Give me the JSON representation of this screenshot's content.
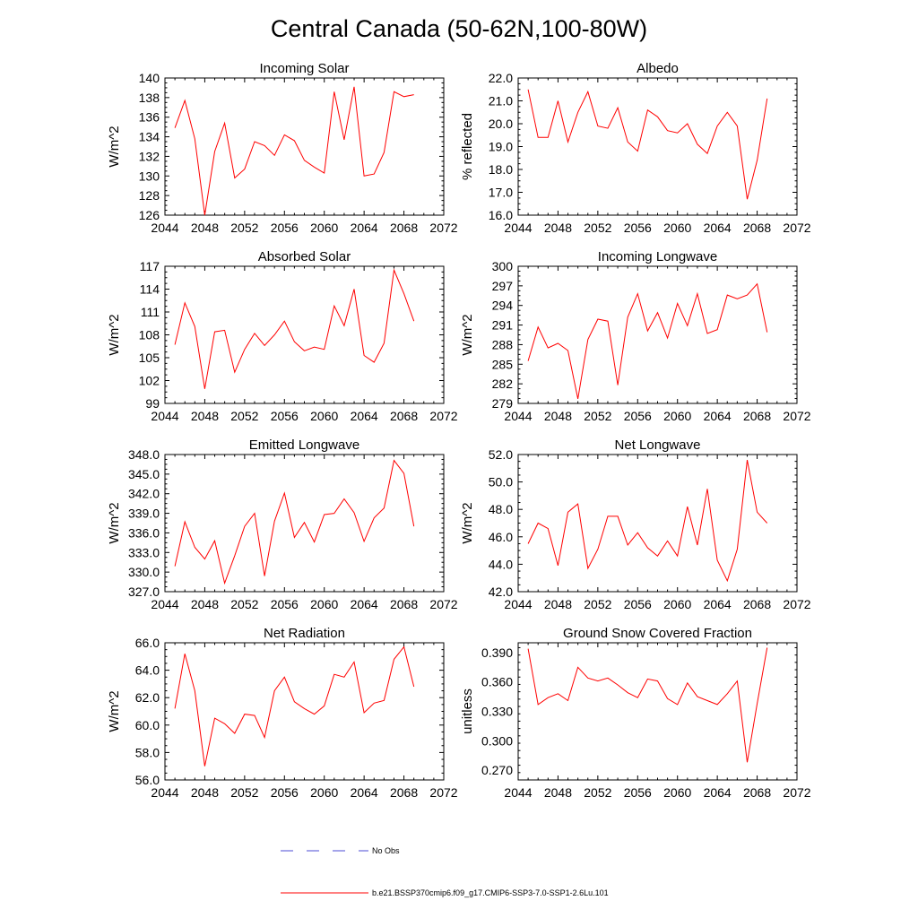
{
  "figure": {
    "title": "Central Canada (50-62N,100-80W)",
    "series_color": "#ff0000",
    "obs_color": "#4b4bd6"
  },
  "legend": {
    "items": [
      {
        "label": "No Obs",
        "style": "dashed",
        "color": "#4b4bd6"
      },
      {
        "label": "b.e21.BSSP370cmip6.f09_g17.CMIP6-SSP3-7.0-SSP1-2.6Lu.101",
        "style": "solid",
        "color": "#ff0000"
      }
    ]
  },
  "chart_data": [
    {
      "type": "line",
      "title": "Incoming Solar",
      "xlabel": "",
      "ylabel": "W/m^2",
      "xlim": [
        2044,
        2072
      ],
      "ylim": [
        126,
        140
      ],
      "xticks": [
        2044,
        2048,
        2052,
        2056,
        2060,
        2064,
        2068,
        2072
      ],
      "yticks": [
        "126",
        "128",
        "130",
        "132",
        "134",
        "136",
        "138",
        "140"
      ],
      "x": [
        2045,
        2046,
        2047,
        2048,
        2049,
        2050,
        2051,
        2052,
        2053,
        2054,
        2055,
        2056,
        2057,
        2058,
        2059,
        2060,
        2061,
        2062,
        2063,
        2064,
        2065,
        2066,
        2067,
        2068,
        2069
      ],
      "values": [
        134.9,
        137.7,
        133.8,
        126.0,
        132.5,
        135.4,
        129.8,
        130.7,
        133.5,
        133.1,
        132.1,
        134.2,
        133.6,
        131.6,
        130.9,
        130.3,
        138.6,
        133.7,
        139.1,
        130.0,
        130.2,
        132.4,
        138.6,
        138.1,
        138.3
      ]
    },
    {
      "type": "line",
      "title": "Albedo",
      "xlabel": "",
      "ylabel": "% reflected",
      "xlim": [
        2044,
        2072
      ],
      "ylim": [
        16.0,
        22.0
      ],
      "xticks": [
        2044,
        2048,
        2052,
        2056,
        2060,
        2064,
        2068,
        2072
      ],
      "yticks": [
        "16.0",
        "17.0",
        "18.0",
        "19.0",
        "20.0",
        "21.0",
        "22.0"
      ],
      "x": [
        2045,
        2046,
        2047,
        2048,
        2049,
        2050,
        2051,
        2052,
        2053,
        2054,
        2055,
        2056,
        2057,
        2058,
        2059,
        2060,
        2061,
        2062,
        2063,
        2064,
        2065,
        2066,
        2067,
        2068,
        2069
      ],
      "values": [
        21.5,
        19.4,
        19.4,
        21.0,
        19.2,
        20.5,
        21.4,
        19.9,
        19.8,
        20.7,
        19.2,
        18.8,
        20.6,
        20.3,
        19.7,
        19.6,
        20.0,
        19.1,
        18.7,
        19.9,
        20.5,
        19.9,
        16.7,
        18.4,
        21.1
      ]
    },
    {
      "type": "line",
      "title": "Absorbed Solar",
      "xlabel": "",
      "ylabel": "W/m^2",
      "xlim": [
        2044,
        2072
      ],
      "ylim": [
        99,
        117
      ],
      "xticks": [
        2044,
        2048,
        2052,
        2056,
        2060,
        2064,
        2068,
        2072
      ],
      "yticks": [
        "99",
        "102",
        "105",
        "108",
        "111",
        "114",
        "117"
      ],
      "x": [
        2045,
        2046,
        2047,
        2048,
        2049,
        2050,
        2051,
        2052,
        2053,
        2054,
        2055,
        2056,
        2057,
        2058,
        2059,
        2060,
        2061,
        2062,
        2063,
        2064,
        2065,
        2066,
        2067,
        2068,
        2069
      ],
      "values": [
        106.7,
        112.2,
        109.1,
        100.9,
        108.4,
        108.6,
        103.1,
        106.1,
        108.2,
        106.6,
        108.0,
        109.8,
        107.1,
        105.9,
        106.4,
        106.1,
        111.8,
        109.2,
        114.0,
        105.3,
        104.4,
        106.9,
        116.5,
        113.4,
        109.8
      ]
    },
    {
      "type": "line",
      "title": "Incoming Longwave",
      "xlabel": "",
      "ylabel": "W/m^2",
      "xlim": [
        2044,
        2072
      ],
      "ylim": [
        279,
        300
      ],
      "xticks": [
        2044,
        2048,
        2052,
        2056,
        2060,
        2064,
        2068,
        2072
      ],
      "yticks": [
        "279",
        "282",
        "285",
        "288",
        "291",
        "294",
        "297",
        "300"
      ],
      "x": [
        2045,
        2046,
        2047,
        2048,
        2049,
        2050,
        2051,
        2052,
        2053,
        2054,
        2055,
        2056,
        2057,
        2058,
        2059,
        2060,
        2061,
        2062,
        2063,
        2064,
        2065,
        2066,
        2067,
        2068,
        2069
      ],
      "values": [
        285.5,
        290.7,
        287.5,
        288.2,
        287.1,
        279.7,
        288.8,
        291.9,
        291.6,
        281.8,
        292.2,
        295.8,
        290.1,
        292.9,
        289.0,
        294.3,
        290.9,
        295.8,
        289.7,
        290.3,
        295.6,
        295.0,
        295.6,
        297.3,
        289.9
      ]
    },
    {
      "type": "line",
      "title": "Emitted Longwave",
      "xlabel": "",
      "ylabel": "W/m^2",
      "xlim": [
        2044,
        2072
      ],
      "ylim": [
        327,
        348
      ],
      "xticks": [
        2044,
        2048,
        2052,
        2056,
        2060,
        2064,
        2068,
        2072
      ],
      "yticks": [
        "327.0",
        "330.0",
        "333.0",
        "336.0",
        "339.0",
        "342.0",
        "345.0",
        "348.0"
      ],
      "x": [
        2045,
        2046,
        2047,
        2048,
        2049,
        2050,
        2051,
        2052,
        2053,
        2054,
        2055,
        2056,
        2057,
        2058,
        2059,
        2060,
        2061,
        2062,
        2063,
        2064,
        2065,
        2066,
        2067,
        2068,
        2069
      ],
      "values": [
        330.9,
        337.7,
        333.8,
        332.0,
        334.8,
        328.3,
        332.5,
        337.0,
        339.0,
        329.4,
        337.8,
        342.1,
        335.3,
        337.6,
        334.6,
        338.8,
        339.0,
        341.2,
        339.1,
        334.7,
        338.3,
        339.8,
        347.1,
        345.1,
        337.0
      ]
    },
    {
      "type": "line",
      "title": "Net Longwave",
      "xlabel": "",
      "ylabel": "W/m^2",
      "xlim": [
        2044,
        2072
      ],
      "ylim": [
        42,
        52
      ],
      "xticks": [
        2044,
        2048,
        2052,
        2056,
        2060,
        2064,
        2068,
        2072
      ],
      "yticks": [
        "42.0",
        "44.0",
        "46.0",
        "48.0",
        "50.0",
        "52.0"
      ],
      "x": [
        2045,
        2046,
        2047,
        2048,
        2049,
        2050,
        2051,
        2052,
        2053,
        2054,
        2055,
        2056,
        2057,
        2058,
        2059,
        2060,
        2061,
        2062,
        2063,
        2064,
        2065,
        2066,
        2067,
        2068,
        2069
      ],
      "values": [
        45.5,
        47.0,
        46.6,
        43.9,
        47.8,
        48.4,
        43.7,
        45.1,
        47.5,
        47.5,
        45.4,
        46.3,
        45.2,
        44.6,
        45.7,
        44.6,
        48.2,
        45.4,
        49.5,
        44.3,
        42.8,
        45.1,
        51.6,
        47.8,
        47.0
      ]
    },
    {
      "type": "line",
      "title": "Net Radiation",
      "xlabel": "",
      "ylabel": "W/m^2",
      "xlim": [
        2044,
        2072
      ],
      "ylim": [
        56,
        66
      ],
      "xticks": [
        2044,
        2048,
        2052,
        2056,
        2060,
        2064,
        2068,
        2072
      ],
      "yticks": [
        "56.0",
        "58.0",
        "60.0",
        "62.0",
        "64.0",
        "66.0"
      ],
      "x": [
        2045,
        2046,
        2047,
        2048,
        2049,
        2050,
        2051,
        2052,
        2053,
        2054,
        2055,
        2056,
        2057,
        2058,
        2059,
        2060,
        2061,
        2062,
        2063,
        2064,
        2065,
        2066,
        2067,
        2068,
        2069
      ],
      "values": [
        61.2,
        65.2,
        62.5,
        57.0,
        60.5,
        60.1,
        59.4,
        60.8,
        60.7,
        59.1,
        62.5,
        63.5,
        61.7,
        61.2,
        60.8,
        61.4,
        63.7,
        63.5,
        64.6,
        60.9,
        61.6,
        61.8,
        64.8,
        65.7,
        62.8
      ]
    },
    {
      "type": "line",
      "title": "Ground Snow Covered Fraction",
      "xlabel": "",
      "ylabel": "unitless",
      "xlim": [
        2044,
        2072
      ],
      "ylim": [
        0.26,
        0.4
      ],
      "xticks": [
        2044,
        2048,
        2052,
        2056,
        2060,
        2064,
        2068,
        2072
      ],
      "yticks": [
        "0.270",
        "0.300",
        "0.330",
        "0.360",
        "0.390"
      ],
      "x": [
        2045,
        2046,
        2047,
        2048,
        2049,
        2050,
        2051,
        2052,
        2053,
        2054,
        2055,
        2056,
        2057,
        2058,
        2059,
        2060,
        2061,
        2062,
        2063,
        2064,
        2065,
        2066,
        2067,
        2068,
        2069
      ],
      "values": [
        0.394,
        0.337,
        0.344,
        0.348,
        0.341,
        0.375,
        0.364,
        0.361,
        0.364,
        0.357,
        0.349,
        0.344,
        0.363,
        0.361,
        0.343,
        0.337,
        0.359,
        0.345,
        0.341,
        0.337,
        0.348,
        0.361,
        0.278,
        0.338,
        0.395
      ]
    }
  ]
}
